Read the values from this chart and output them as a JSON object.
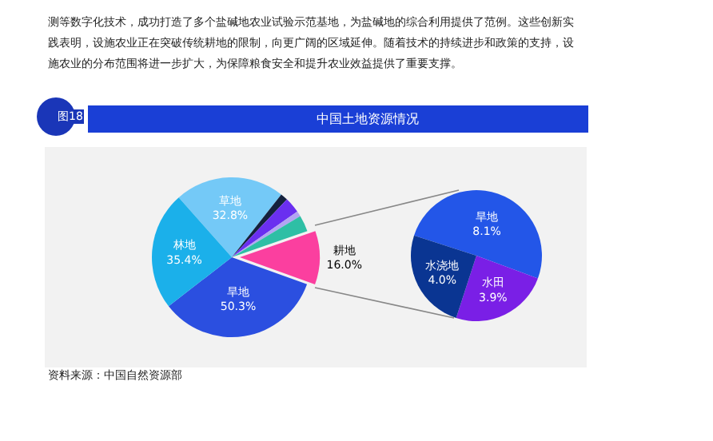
{
  "chart_data": [
    {
      "type": "pie",
      "title": "中国土地资源情况",
      "annotations": [
        "测等数字化技术，成功打造了多个盐碱地农业试验示范基地，为盐碱地的综合利用提供了范例。这些创新实",
        "践表明，设施农业正在突破传统耕地的限制，向更广阔的区域延伸。随着技术的持续进步和政策的支持，设",
        "施农业的分布范围将进一步扩大，为保障粮食安全和提升农业效益提供了重要支撑。",
        "图18",
        "资料来源：中国自然资源部"
      ],
      "categories": [
        "草地",
        null,
        null,
        null,
        null,
        "耕地",
        "旱地",
        "林地"
      ],
      "values": [
        32.8,
        2.2,
        4.7,
        1.6,
        4.9,
        16.0,
        50.3,
        35.4
      ],
      "colors": [
        "#74c9f7",
        "#14213d",
        "#6a2ff0",
        "#b3a4f2",
        "#2ebfa5",
        "#fb3f9f",
        "#2b4fe0",
        "#1bb0ea"
      ],
      "value_labels": [
        "32.8%",
        null,
        null,
        null,
        null,
        "16.0%",
        "50.3%",
        "35.4%"
      ]
    },
    {
      "type": "pie",
      "categories": [
        "旱地",
        "水田",
        "水浇地"
      ],
      "values": [
        8.1,
        3.9,
        4.0
      ],
      "colors": [
        "#2356e8",
        "#7a1fe6",
        "#0a3592"
      ],
      "value_labels": [
        "8.1%",
        "3.9%",
        "4.0%"
      ]
    }
  ]
}
